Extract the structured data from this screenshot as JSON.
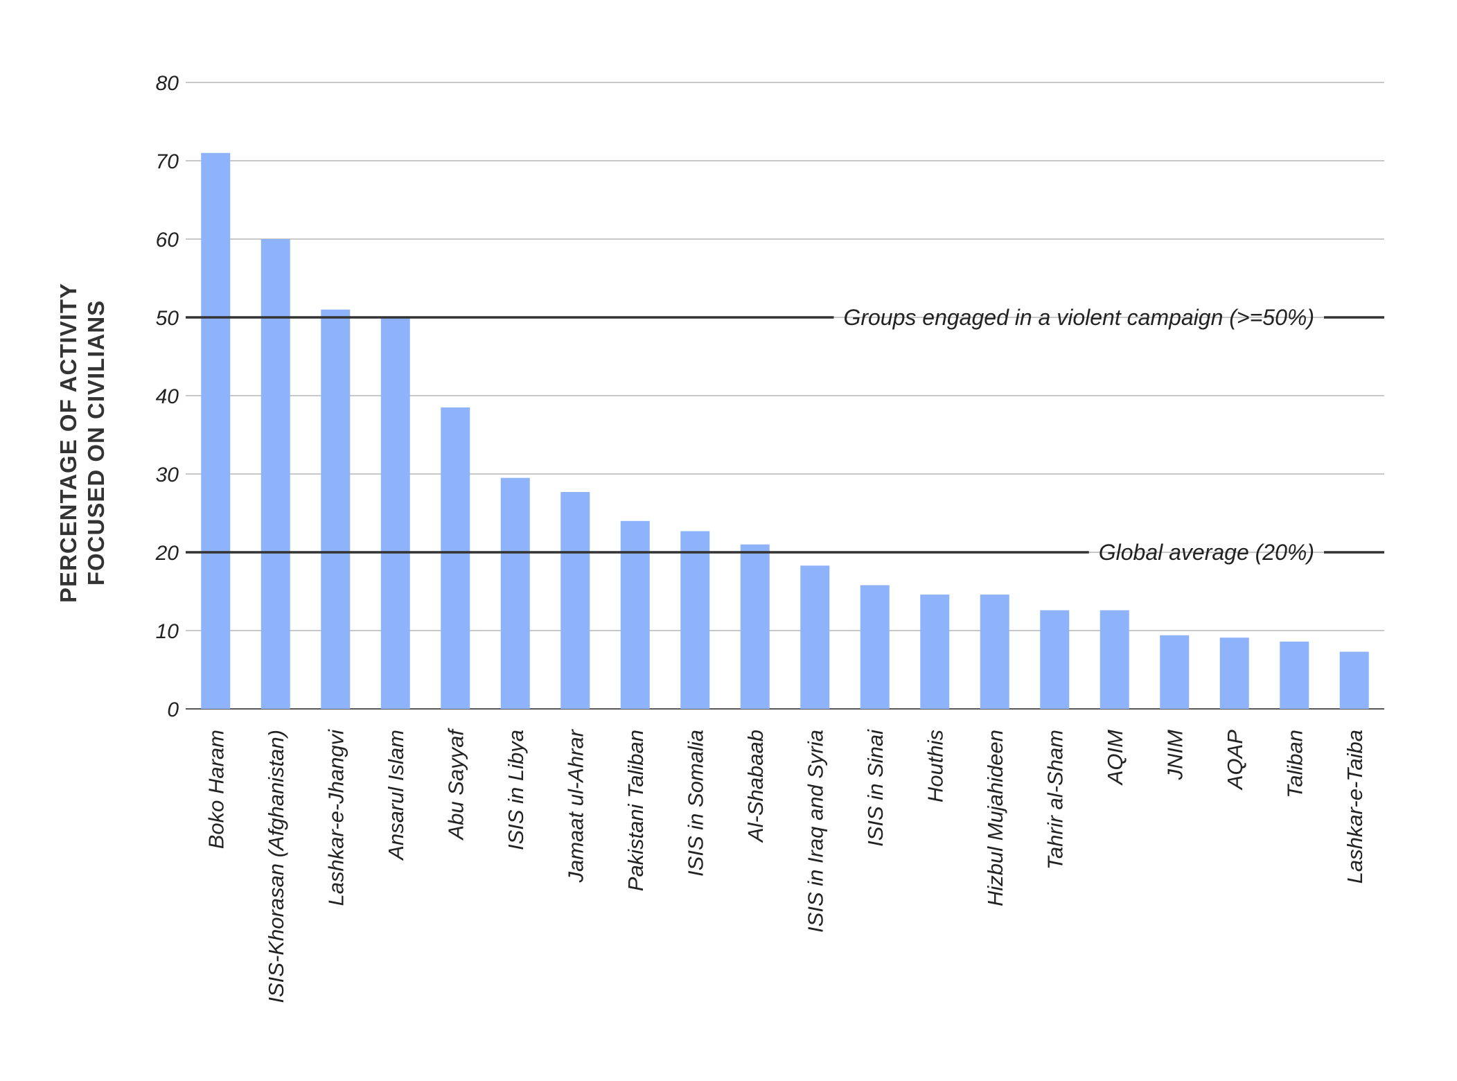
{
  "chart_data": {
    "type": "bar",
    "ylabel": [
      "PERCENTAGE OF ACTIVITY",
      "FOCUSED ON CIVILIANS"
    ],
    "ylim": [
      0,
      80
    ],
    "yticks": [
      0,
      10,
      20,
      30,
      40,
      50,
      60,
      70,
      80
    ],
    "grid": true,
    "bar_color": "#8eb3fa",
    "categories": [
      "Boko Haram",
      "ISIS-Khorasan (Afghanistan)",
      "Lashkar-e-Jhangvi",
      "Ansarul Islam",
      "Abu Sayyaf",
      "ISIS in Libya",
      "Jamaat ul-Ahrar",
      "Pakistani Taliban",
      "ISIS in Somalia",
      "Al-Shabaab",
      "ISIS in Iraq and Syria",
      "ISIS in Sinai",
      "Houthis",
      "Hizbul Mujahideen",
      "Tahrir al-Sham",
      "AQIM",
      "JNIM",
      "AQAP",
      "Taliban",
      "Lashkar-e-Taiba"
    ],
    "values": [
      71,
      60,
      51,
      50,
      38.5,
      29.5,
      27.7,
      24,
      22.7,
      21,
      18.3,
      15.8,
      14.6,
      14.6,
      12.6,
      12.6,
      9.4,
      9.1,
      8.6,
      7.3
    ],
    "reference_lines": [
      {
        "value": 50,
        "label": "Groups engaged in a violent campaign (>=50%)"
      },
      {
        "value": 20,
        "label": "Global average (20%)"
      }
    ]
  }
}
